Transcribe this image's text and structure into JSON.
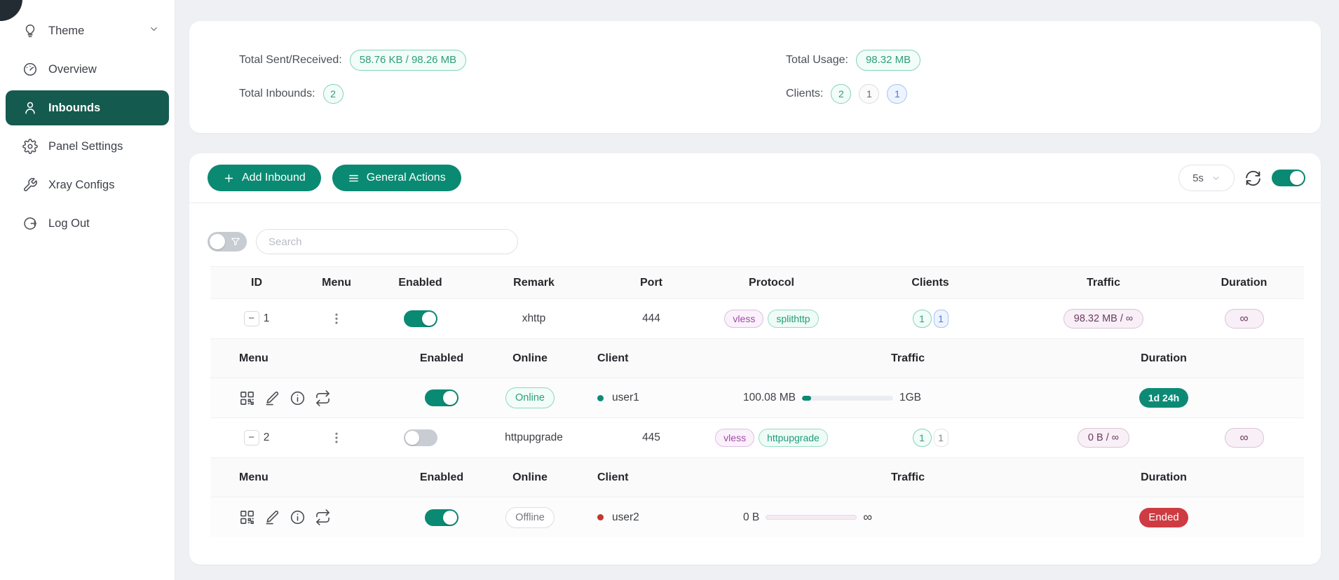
{
  "colors": {
    "accent_teal": "#0a8a72",
    "sidebar_active": "#155a4e",
    "danger_red": "#ce3b42",
    "pill_green_text": "#2f9e79",
    "tag_purple_text": "#a14ba8",
    "pink_pill_bg": "#f8f0f6"
  },
  "sidebar": {
    "items": [
      {
        "label": "Theme"
      },
      {
        "label": "Overview"
      },
      {
        "label": "Inbounds"
      },
      {
        "label": "Panel Settings"
      },
      {
        "label": "Xray Configs"
      },
      {
        "label": "Log Out"
      }
    ]
  },
  "stats": {
    "sent_received_label": "Total Sent/Received:",
    "sent_received_value": "58.76 KB / 98.26 MB",
    "total_inbounds_label": "Total Inbounds:",
    "total_inbounds_value": "2",
    "total_usage_label": "Total Usage:",
    "total_usage_value": "98.32 MB",
    "clients_label": "Clients:",
    "clients_green": "2",
    "clients_gray": "1",
    "clients_blue": "1"
  },
  "toolbar": {
    "add_inbound_label": "Add Inbound",
    "general_actions_label": "General Actions",
    "refresh_interval": "5s"
  },
  "filters": {
    "search_placeholder": "Search"
  },
  "table": {
    "collapse_symbol": "−",
    "headers": [
      "ID",
      "Menu",
      "Enabled",
      "Remark",
      "Port",
      "Protocol",
      "Clients",
      "Traffic",
      "Duration"
    ],
    "sub_headers": [
      "Menu",
      "Enabled",
      "Online",
      "Client",
      "Traffic",
      "Duration"
    ],
    "rows": [
      {
        "id": "1",
        "remark": "xhttp",
        "port": "444",
        "protocol_tag1": "vless",
        "protocol_tag2": "splithttp",
        "clients_active": "1",
        "clients_total": "1",
        "traffic": "98.32 MB / ∞",
        "duration": "∞",
        "clients": [
          {
            "status": "Online",
            "name": "user1",
            "traffic_used": "100.08 MB",
            "traffic_total": "1GB",
            "progress_percent": 10,
            "duration": "1d 24h"
          }
        ]
      },
      {
        "id": "2",
        "remark": "httpupgrade",
        "port": "445",
        "protocol_tag1": "vless",
        "protocol_tag2": "httpupgrade",
        "clients_active": "1",
        "clients_total": "1",
        "traffic": "0 B / ∞",
        "duration": "∞",
        "clients": [
          {
            "status": "Offline",
            "name": "user2",
            "traffic_used": "0 B",
            "traffic_total": "∞",
            "progress_percent": 0,
            "duration": "Ended"
          }
        ]
      }
    ]
  }
}
